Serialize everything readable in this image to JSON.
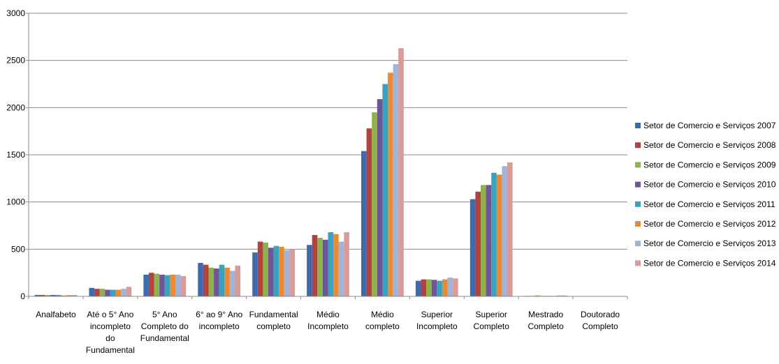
{
  "chart_data": {
    "type": "bar",
    "title": "",
    "xlabel": "",
    "ylabel": "",
    "ylim": [
      0,
      3000
    ],
    "yticks": [
      0,
      500,
      1000,
      1500,
      2000,
      2500,
      3000
    ],
    "grid": true,
    "legend_position": "right",
    "categories": [
      [
        "Analfabeto"
      ],
      [
        "Até o 5° Ano",
        "incompleto",
        "do",
        "Fundamental"
      ],
      [
        "5° Ano",
        "Completo do",
        "Fundamental"
      ],
      [
        "6° ao 9° Ano",
        "incompleto"
      ],
      [
        "Fundamental",
        "completo"
      ],
      [
        "Médio",
        "Incompleto"
      ],
      [
        "Médio",
        "completo"
      ],
      [
        "Superior",
        "Incompleto"
      ],
      [
        "Superior",
        "Completo"
      ],
      [
        "Mestrado",
        "Completo"
      ],
      [
        "Doutorado",
        "Completo"
      ]
    ],
    "series": [
      {
        "name": "Setor de Comercio e Serviços 2007",
        "color": "#3d6bb0",
        "values": [
          15,
          90,
          230,
          355,
          465,
          545,
          1540,
          165,
          1030,
          5,
          3
        ]
      },
      {
        "name": "Setor de Comercio e Serviços 2008",
        "color": "#b5413e",
        "values": [
          15,
          80,
          250,
          335,
          580,
          650,
          1780,
          180,
          1110,
          5,
          3
        ]
      },
      {
        "name": "Setor de Comercio e Serviços 2009",
        "color": "#8fb24b",
        "values": [
          15,
          80,
          240,
          305,
          570,
          620,
          1950,
          180,
          1180,
          10,
          3
        ]
      },
      {
        "name": "Setor de Comercio e Serviços 2010",
        "color": "#6e5596",
        "values": [
          15,
          70,
          230,
          295,
          515,
          600,
          2090,
          175,
          1180,
          5,
          3
        ]
      },
      {
        "name": "Setor de Comercio e Serviços 2011",
        "color": "#3aa2bf",
        "values": [
          15,
          70,
          225,
          335,
          535,
          680,
          2250,
          165,
          1310,
          5,
          3
        ]
      },
      {
        "name": "Setor de Comercio e Serviços 2012",
        "color": "#ec8a34",
        "values": [
          10,
          70,
          230,
          305,
          525,
          660,
          2370,
          180,
          1290,
          5,
          3
        ]
      },
      {
        "name": "Setor de Comercio e Serviços 2013",
        "color": "#9eb4da",
        "values": [
          15,
          80,
          230,
          270,
          490,
          580,
          2460,
          200,
          1380,
          10,
          3
        ]
      },
      {
        "name": "Setor de Comercio e Serviços 2014",
        "color": "#da9a98",
        "values": [
          15,
          100,
          215,
          325,
          500,
          680,
          2630,
          190,
          1420,
          10,
          3
        ]
      }
    ]
  }
}
